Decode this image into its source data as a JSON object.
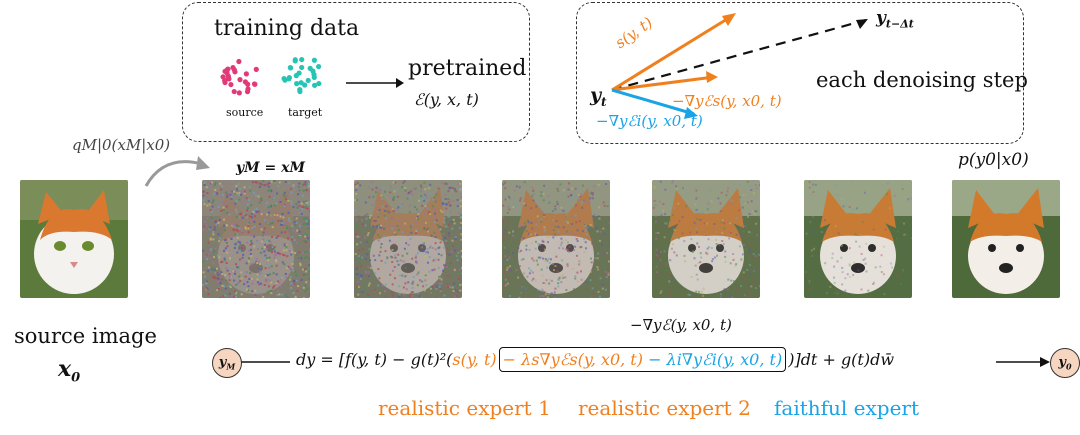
{
  "top_left_box": {
    "title": "training data",
    "source_label": "source",
    "target_label": "target",
    "pretrained_label": "pretrained",
    "energy_formula": "ℰ(y, x, t)",
    "source_color": "#e23a78",
    "target_color": "#26c4b4"
  },
  "top_right_box": {
    "y_t": "yt",
    "y_t_minus": "yt−Δt",
    "score_label": "s(y, t)",
    "grad_s_label": "−∇yℰs(y, x0, t)",
    "grad_i_label": "−∇yℰi(y, x0, t)",
    "step_label": "each denoising step",
    "orange": "#f07f1e",
    "blue": "#1aa4e6"
  },
  "forward_label": "qM|0(xM|x0)",
  "yM_eq_label": "yM = xM",
  "posterior_label": "p(y0|x0)",
  "grad_total_label": "−∇yℰ(y, x0, t)",
  "source_image": {
    "caption": "source image",
    "symbol": "x0"
  },
  "sequence": [
    {
      "name": "noise-image",
      "noise": 1.0
    },
    {
      "name": "step-1-image",
      "noise": 0.75
    },
    {
      "name": "step-2-image",
      "noise": 0.55
    },
    {
      "name": "step-3-image",
      "noise": 0.35
    },
    {
      "name": "step-4-image",
      "noise": 0.15
    },
    {
      "name": "output-image",
      "noise": 0.0
    }
  ],
  "sde": {
    "start_node": "yM",
    "end_node": "y0",
    "lhs": "dy = [f(y, t) − g(t)²(",
    "score": "s(y, t)",
    "term_s": "− λs∇yℰs(y, x0, t)",
    "term_i": "− λi∇yℰi(y, x0, t)",
    "rhs": ")]dt + g(t)dw̄"
  },
  "experts": {
    "expert1": "realistic expert 1",
    "expert2": "realistic expert 2",
    "expert3": "faithful expert"
  }
}
